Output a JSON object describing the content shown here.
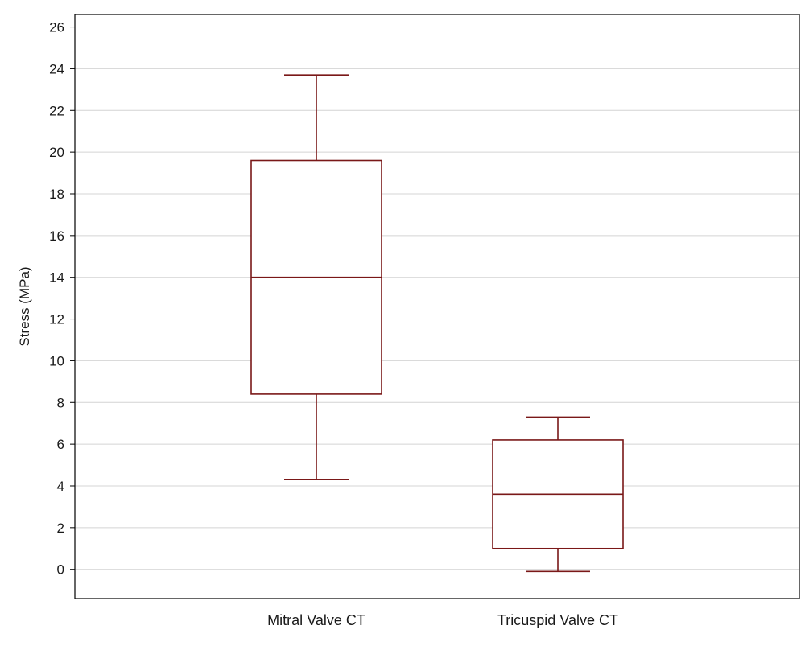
{
  "chart_data": {
    "type": "box",
    "title": "",
    "xlabel": "",
    "ylabel": "Stress (MPa)",
    "ylim": [
      -1.4,
      26.6
    ],
    "yticks": [
      0,
      2,
      4,
      6,
      8,
      10,
      12,
      14,
      16,
      18,
      20,
      22,
      24,
      26
    ],
    "grid": true,
    "categories": [
      "Mitral Valve CT",
      "Tricuspid Valve CT"
    ],
    "boxes": [
      {
        "category": "Mitral Valve CT",
        "min": 4.3,
        "q1": 8.4,
        "median": 14.0,
        "q3": 19.6,
        "max": 23.7
      },
      {
        "category": "Tricuspid Valve CT",
        "min": -0.1,
        "q1": 1.0,
        "median": 3.6,
        "q3": 6.2,
        "max": 7.3
      }
    ],
    "colors": {
      "box": "#7a1818",
      "grid": "#d4d4d4",
      "frame": "#000000"
    }
  }
}
